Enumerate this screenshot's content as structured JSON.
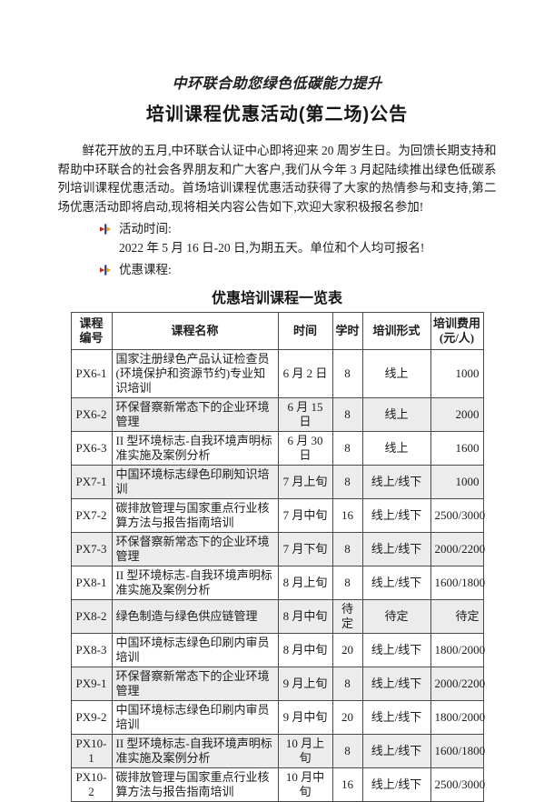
{
  "doc": {
    "title_italic": "中环联合助您绿色低碳能力提升",
    "title_main": "培训课程优惠活动(第二场)公告",
    "intro": "鲜花开放的五月,中环联合认证中心即将迎来 20 周岁生日。为回馈长期支持和帮助中环联合的社会各界朋友和广大客户,我们从今年 3 月起陆续推出绿色低碳系列培训课程优惠活动。首场培训课程优惠活动获得了大家的热情参与和支持,第二场优惠活动即将启动,现将相关内容公告如下,欢迎大家积极报名参加!",
    "bullets": [
      {
        "label": "活动时间:",
        "detail": "2022 年 5 月 16 日-20 日,为期五天。单位和个人均可报名!"
      },
      {
        "label": "优惠课程:",
        "detail": ""
      }
    ],
    "bullet_icon": {
      "name": "arrow-dart-bullet",
      "colors": {
        "red": "#c22a1e",
        "blue": "#26358c",
        "yellow": "#e7a900"
      }
    },
    "table_title": "优惠培训课程一览表",
    "table": {
      "headers": [
        "课程\n编号",
        "课程名称",
        "时间",
        "学时",
        "培训形式",
        "培训费用\n(元/人)"
      ],
      "rows": [
        [
          "PX6-1",
          "国家注册绿色产品认证检查员(环境保护和资源节约)专业知识培训",
          "6 月 2 日",
          "8",
          "线上",
          "1000"
        ],
        [
          "PX6-2",
          "环保督察新常态下的企业环境管理",
          "6 月 15 日",
          "8",
          "线上",
          "2000"
        ],
        [
          "PX6-3",
          "II 型环境标志-自我环境声明标准实施及案例分析",
          "6 月 30 日",
          "8",
          "线上",
          "1600"
        ],
        [
          "PX7-1",
          "中国环境标志绿色印刷知识培训",
          "7 月上旬",
          "8",
          "线上/线下",
          "1000"
        ],
        [
          "PX7-2",
          "碳排放管理与国家重点行业核算方法与报告指南培训",
          "7 月中旬",
          "16",
          "线上/线下",
          "2500/3000"
        ],
        [
          "PX7-3",
          "环保督察新常态下的企业环境管理",
          "7 月下旬",
          "8",
          "线上/线下",
          "2000/2200"
        ],
        [
          "PX8-1",
          "II 型环境标志-自我环境声明标准实施及案例分析",
          "8 月上旬",
          "8",
          "线上/线下",
          "1600/1800"
        ],
        [
          "PX8-2",
          "绿色制造与绿色供应链管理",
          "8 月中旬",
          "待定",
          "待定",
          "待定"
        ],
        [
          "PX8-3",
          "中国环境标志绿色印刷内审员培训",
          "8 月中旬",
          "20",
          "线上/线下",
          "1800/2000"
        ],
        [
          "PX9-1",
          "环保督察新常态下的企业环境管理",
          "9 月上旬",
          "8",
          "线上/线下",
          "2000/2200"
        ],
        [
          "PX9-2",
          "中国环境标志绿色印刷内审员培训",
          "9 月中旬",
          "20",
          "线上/线下",
          "1800/2000"
        ],
        [
          "PX10-1",
          "II 型环境标志-自我环境声明标准实施及案例分析",
          "10 月上旬",
          "8",
          "线上/线下",
          "1600/1800"
        ],
        [
          "PX10-2",
          "碳排放管理与国家重点行业核算方法与报告指南培训",
          "10 月中旬",
          "16",
          "线上/线下",
          "2500/3000"
        ]
      ],
      "shaded_row_color": "#ececec"
    }
  }
}
